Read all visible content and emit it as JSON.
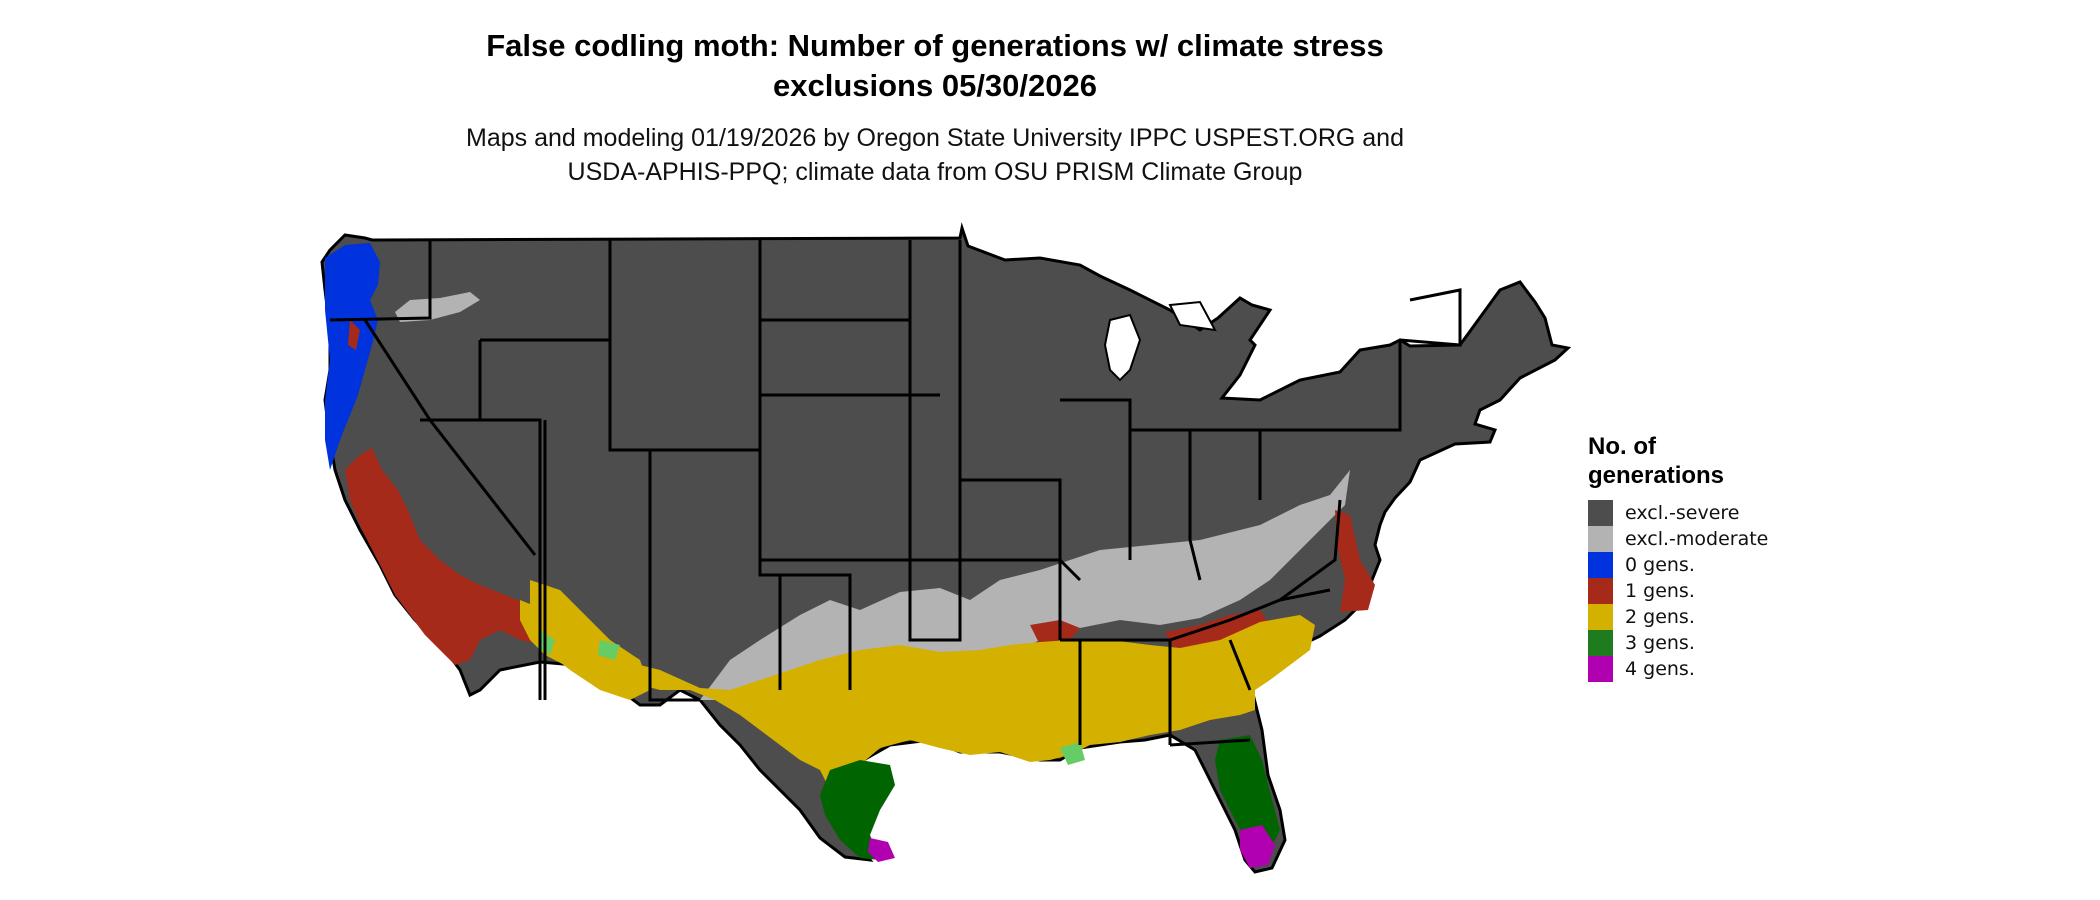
{
  "header": {
    "title_line1": "False codling moth: Number of generations w/ climate stress",
    "title_line2": "exclusions 05/30/2026",
    "subtitle_line1": "Maps and modeling 01/19/2026 by Oregon State University IPPC USPEST.ORG and",
    "subtitle_line2": "USDA-APHIS-PPQ; climate data from OSU PRISM Climate Group"
  },
  "legend": {
    "title_line1": "No. of",
    "title_line2": "generations",
    "items": [
      {
        "label": "excl.-severe",
        "color": "#4d4d4d"
      },
      {
        "label": "excl.-moderate",
        "color": "#b3b3b3"
      },
      {
        "label": "0 gens.",
        "color": "#0033dd"
      },
      {
        "label": "1 gens.",
        "color": "#a52a1a"
      },
      {
        "label": "2 gens.",
        "color": "#d4b000"
      },
      {
        "label": "3 gens.",
        "color": "#1e7b1e"
      },
      {
        "label": "4 gens.",
        "color": "#b000b0"
      }
    ]
  },
  "map_colors": {
    "severe": "#4d4d4d",
    "moderate": "#b3b3b3",
    "zero": "#0033dd",
    "one": "#a52a1a",
    "two": "#d4b000",
    "three": "#1e7b1e",
    "three_dark": "#006400",
    "three_light": "#66cc66",
    "four": "#b000b0",
    "border": "#000000"
  }
}
